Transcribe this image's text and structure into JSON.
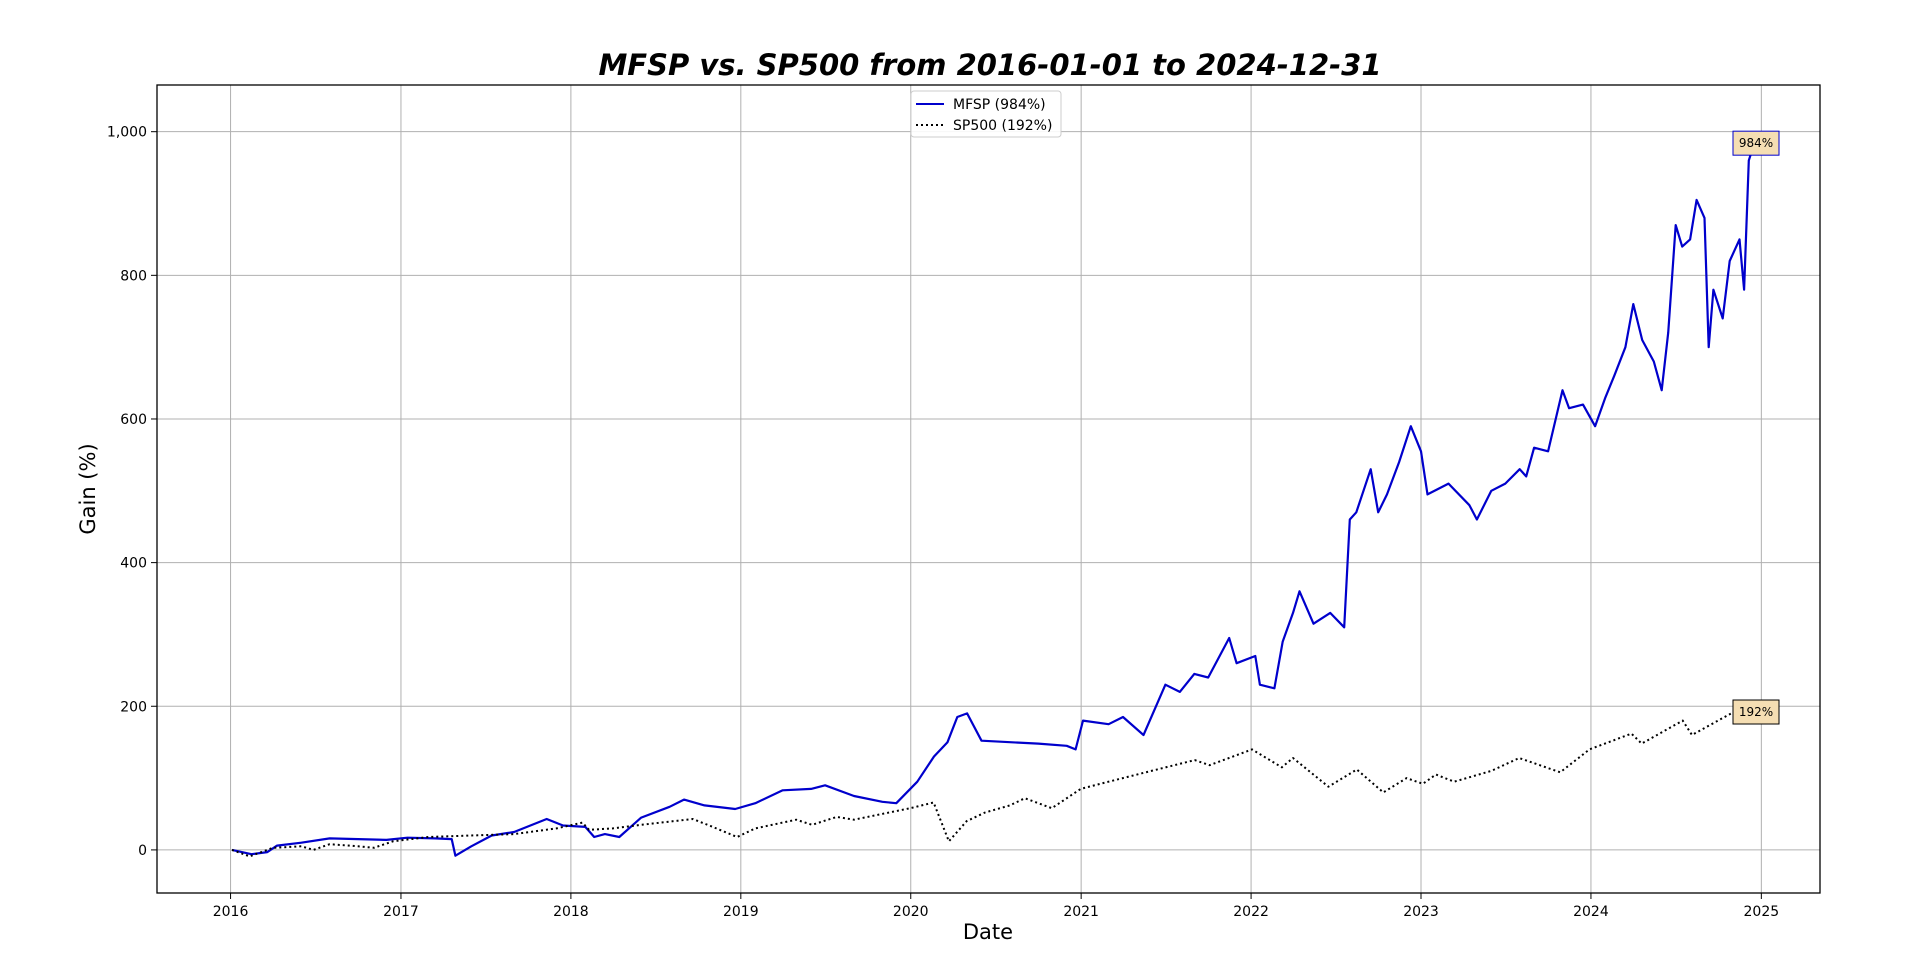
{
  "chart_data": {
    "type": "line",
    "title": "MFSP vs. SP500 from 2016-01-01 to 2024-12-31",
    "xlabel": "Date",
    "ylabel": "Gain (%)",
    "xlim": [
      "2015-07-27",
      "2025-05-07"
    ],
    "ylim": [
      -60,
      1065
    ],
    "x_ticks": [
      "2016",
      "2017",
      "2018",
      "2019",
      "2020",
      "2021",
      "2022",
      "2023",
      "2024",
      "2025"
    ],
    "y_ticks": [
      0,
      200,
      400,
      600,
      800,
      1000
    ],
    "y_tick_labels": [
      "0",
      "200",
      "400",
      "600",
      "800",
      "1,000"
    ],
    "grid": true,
    "legend_position": "top-center",
    "series": [
      {
        "name": "MFSP (984%)",
        "color": "#0000cc",
        "style": "solid",
        "end_label": "984%",
        "points": [
          [
            "2016-01-04",
            0
          ],
          [
            "2016-02-15",
            -6
          ],
          [
            "2016-03-20",
            -3
          ],
          [
            "2016-04-10",
            6
          ],
          [
            "2016-06-01",
            10
          ],
          [
            "2016-08-01",
            16
          ],
          [
            "2016-10-01",
            15
          ],
          [
            "2016-12-01",
            14
          ],
          [
            "2017-01-15",
            17
          ],
          [
            "2017-03-15",
            16
          ],
          [
            "2017-04-20",
            15
          ],
          [
            "2017-04-28",
            -8
          ],
          [
            "2017-06-01",
            5
          ],
          [
            "2017-07-15",
            20
          ],
          [
            "2017-09-01",
            25
          ],
          [
            "2017-11-10",
            43
          ],
          [
            "2017-12-15",
            34
          ],
          [
            "2018-02-01",
            32
          ],
          [
            "2018-02-20",
            18
          ],
          [
            "2018-03-15",
            22
          ],
          [
            "2018-04-15",
            18
          ],
          [
            "2018-06-01",
            45
          ],
          [
            "2018-08-01",
            60
          ],
          [
            "2018-09-01",
            70
          ],
          [
            "2018-10-15",
            62
          ],
          [
            "2018-12-20",
            57
          ],
          [
            "2019-02-01",
            65
          ],
          [
            "2019-04-01",
            83
          ],
          [
            "2019-06-01",
            85
          ],
          [
            "2019-07-01",
            90
          ],
          [
            "2019-09-01",
            75
          ],
          [
            "2019-11-01",
            67
          ],
          [
            "2019-12-01",
            65
          ],
          [
            "2020-01-15",
            95
          ],
          [
            "2020-02-20",
            130
          ],
          [
            "2020-03-20",
            150
          ],
          [
            "2020-04-10",
            185
          ],
          [
            "2020-05-01",
            190
          ],
          [
            "2020-06-01",
            152
          ],
          [
            "2020-08-01",
            150
          ],
          [
            "2020-10-01",
            148
          ],
          [
            "2020-12-01",
            145
          ],
          [
            "2020-12-20",
            140
          ],
          [
            "2021-01-05",
            180
          ],
          [
            "2021-03-01",
            175
          ],
          [
            "2021-04-01",
            185
          ],
          [
            "2021-05-15",
            160
          ],
          [
            "2021-07-01",
            230
          ],
          [
            "2021-08-01",
            220
          ],
          [
            "2021-09-01",
            245
          ],
          [
            "2021-10-01",
            240
          ],
          [
            "2021-11-15",
            295
          ],
          [
            "2021-12-01",
            260
          ],
          [
            "2022-01-10",
            270
          ],
          [
            "2022-01-20",
            230
          ],
          [
            "2022-02-20",
            225
          ],
          [
            "2022-03-10",
            290
          ],
          [
            "2022-04-01",
            330
          ],
          [
            "2022-04-15",
            360
          ],
          [
            "2022-05-15",
            315
          ],
          [
            "2022-06-20",
            330
          ],
          [
            "2022-07-20",
            310
          ],
          [
            "2022-08-01",
            460
          ],
          [
            "2022-08-15",
            470
          ],
          [
            "2022-09-15",
            530
          ],
          [
            "2022-10-01",
            470
          ],
          [
            "2022-10-20",
            495
          ],
          [
            "2022-11-15",
            540
          ],
          [
            "2022-12-10",
            590
          ],
          [
            "2023-01-01",
            555
          ],
          [
            "2023-01-15",
            495
          ],
          [
            "2023-03-01",
            510
          ],
          [
            "2023-04-15",
            480
          ],
          [
            "2023-05-01",
            460
          ],
          [
            "2023-06-01",
            500
          ],
          [
            "2023-07-01",
            510
          ],
          [
            "2023-08-01",
            530
          ],
          [
            "2023-08-15",
            520
          ],
          [
            "2023-09-01",
            560
          ],
          [
            "2023-10-01",
            555
          ],
          [
            "2023-11-01",
            640
          ],
          [
            "2023-11-15",
            615
          ],
          [
            "2023-12-15",
            620
          ],
          [
            "2024-01-10",
            590
          ],
          [
            "2024-02-01",
            630
          ],
          [
            "2024-02-20",
            660
          ],
          [
            "2024-03-15",
            700
          ],
          [
            "2024-04-01",
            760
          ],
          [
            "2024-04-20",
            710
          ],
          [
            "2024-05-15",
            680
          ],
          [
            "2024-06-01",
            640
          ],
          [
            "2024-06-15",
            720
          ],
          [
            "2024-07-01",
            870
          ],
          [
            "2024-07-15",
            840
          ],
          [
            "2024-08-01",
            850
          ],
          [
            "2024-08-15",
            905
          ],
          [
            "2024-09-01",
            880
          ],
          [
            "2024-09-10",
            700
          ],
          [
            "2024-09-20",
            780
          ],
          [
            "2024-10-10",
            740
          ],
          [
            "2024-10-25",
            820
          ],
          [
            "2024-11-15",
            850
          ],
          [
            "2024-11-25",
            780
          ],
          [
            "2024-12-05",
            960
          ],
          [
            "2024-12-15",
            980
          ],
          [
            "2024-12-31",
            984
          ]
        ]
      },
      {
        "name": "SP500 (192%)",
        "color": "#000000",
        "style": "dotted",
        "end_label": "192%",
        "points": [
          [
            "2016-01-04",
            0
          ],
          [
            "2016-02-11",
            -9
          ],
          [
            "2016-04-01",
            3
          ],
          [
            "2016-06-01",
            5
          ],
          [
            "2016-06-27",
            0
          ],
          [
            "2016-08-01",
            8
          ],
          [
            "2016-10-01",
            5
          ],
          [
            "2016-11-04",
            3
          ],
          [
            "2016-12-15",
            12
          ],
          [
            "2017-03-01",
            18
          ],
          [
            "2017-06-01",
            20
          ],
          [
            "2017-09-01",
            22
          ],
          [
            "2017-12-01",
            30
          ],
          [
            "2018-01-26",
            38
          ],
          [
            "2018-02-09",
            28
          ],
          [
            "2018-04-01",
            30
          ],
          [
            "2018-06-01",
            35
          ],
          [
            "2018-09-20",
            43
          ],
          [
            "2018-10-29",
            33
          ],
          [
            "2018-12-24",
            18
          ],
          [
            "2019-02-01",
            30
          ],
          [
            "2019-04-30",
            42
          ],
          [
            "2019-06-03",
            35
          ],
          [
            "2019-07-26",
            46
          ],
          [
            "2019-09-01",
            42
          ],
          [
            "2019-12-31",
            58
          ],
          [
            "2020-02-19",
            66
          ],
          [
            "2020-03-23",
            12
          ],
          [
            "2020-04-30",
            40
          ],
          [
            "2020-06-08",
            52
          ],
          [
            "2020-08-01",
            62
          ],
          [
            "2020-09-02",
            72
          ],
          [
            "2020-10-30",
            58
          ],
          [
            "2020-12-31",
            85
          ],
          [
            "2021-03-01",
            95
          ],
          [
            "2021-06-01",
            110
          ],
          [
            "2021-09-02",
            125
          ],
          [
            "2021-10-04",
            118
          ],
          [
            "2022-01-03",
            140
          ],
          [
            "2022-03-08",
            115
          ],
          [
            "2022-04-01",
            128
          ],
          [
            "2022-06-16",
            88
          ],
          [
            "2022-08-16",
            112
          ],
          [
            "2022-10-12",
            80
          ],
          [
            "2022-12-01",
            100
          ],
          [
            "2023-01-05",
            92
          ],
          [
            "2023-02-02",
            105
          ],
          [
            "2023-03-13",
            95
          ],
          [
            "2023-06-01",
            110
          ],
          [
            "2023-07-31",
            128
          ],
          [
            "2023-10-27",
            108
          ],
          [
            "2023-12-29",
            140
          ],
          [
            "2024-03-28",
            162
          ],
          [
            "2024-04-19",
            148
          ],
          [
            "2024-07-16",
            180
          ],
          [
            "2024-08-05",
            160
          ],
          [
            "2024-09-30",
            180
          ],
          [
            "2024-11-11",
            195
          ],
          [
            "2024-12-06",
            205
          ],
          [
            "2024-12-31",
            192
          ]
        ]
      }
    ]
  }
}
